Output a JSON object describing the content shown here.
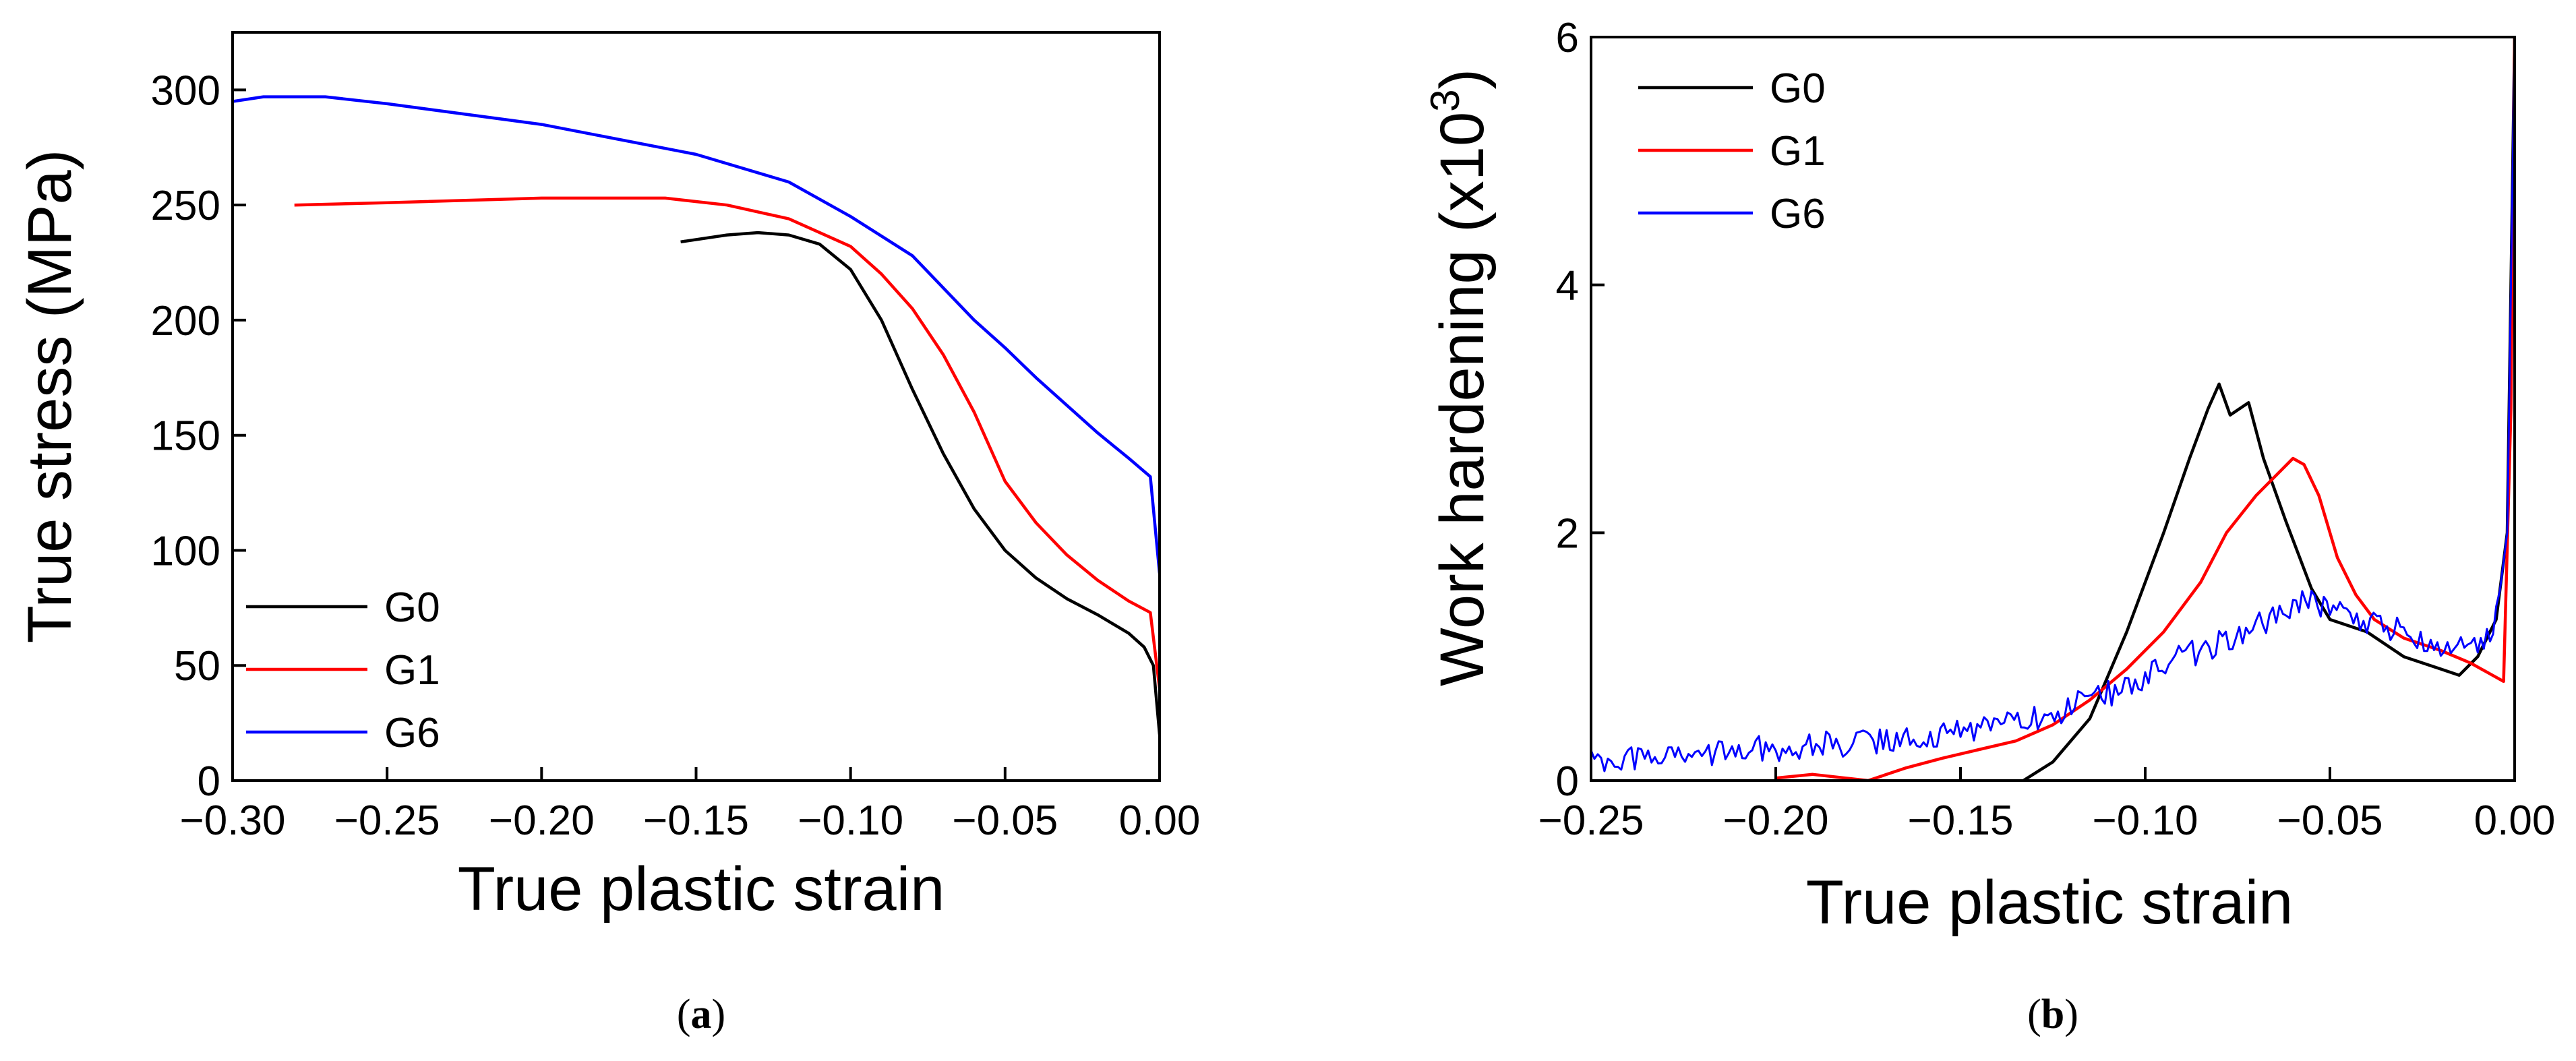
{
  "chart_data": [
    {
      "panel": "a",
      "caption_open": "(",
      "caption": "a",
      "caption_close": ")",
      "type": "line",
      "title": "",
      "xlabel": "True plastic strain",
      "ylabel": "True stress (MPa)",
      "xlim": [
        -0.3,
        0.0
      ],
      "ylim": [
        0,
        325
      ],
      "xticks": [
        -0.3,
        -0.25,
        -0.2,
        -0.15,
        -0.1,
        -0.05,
        0.0
      ],
      "xtick_labels": [
        "−0.30",
        "−0.25",
        "−0.20",
        "−0.15",
        "−0.10",
        "−0.05",
        "0.00"
      ],
      "yticks": [
        0,
        50,
        100,
        150,
        200,
        250,
        300
      ],
      "ytick_labels": [
        "0",
        "50",
        "100",
        "150",
        "200",
        "250",
        "300"
      ],
      "grid": false,
      "legend_position": "bottom-left",
      "series": [
        {
          "name": "G0",
          "color": "#000000",
          "points": [
            [
              -0.155,
              234
            ],
            [
              -0.14,
              237
            ],
            [
              -0.13,
              238
            ],
            [
              -0.12,
              237
            ],
            [
              -0.11,
              233
            ],
            [
              -0.1,
              222
            ],
            [
              -0.09,
              200
            ],
            [
              -0.08,
              170
            ],
            [
              -0.07,
              142
            ],
            [
              -0.06,
              118
            ],
            [
              -0.05,
              100
            ],
            [
              -0.04,
              88
            ],
            [
              -0.03,
              79
            ],
            [
              -0.02,
              72
            ],
            [
              -0.01,
              64
            ],
            [
              -0.005,
              58
            ],
            [
              -0.002,
              50
            ],
            [
              0.0,
              20
            ]
          ]
        },
        {
          "name": "G1",
          "color": "#ff0000",
          "points": [
            [
              -0.28,
              250
            ],
            [
              -0.25,
              251
            ],
            [
              -0.2,
              253
            ],
            [
              -0.18,
              253
            ],
            [
              -0.16,
              253
            ],
            [
              -0.14,
              250
            ],
            [
              -0.12,
              244
            ],
            [
              -0.1,
              232
            ],
            [
              -0.09,
              220
            ],
            [
              -0.08,
              205
            ],
            [
              -0.07,
              185
            ],
            [
              -0.06,
              160
            ],
            [
              -0.05,
              130
            ],
            [
              -0.04,
              112
            ],
            [
              -0.03,
              98
            ],
            [
              -0.02,
              87
            ],
            [
              -0.01,
              78
            ],
            [
              -0.003,
              73
            ],
            [
              0.0,
              40
            ]
          ]
        },
        {
          "name": "G6",
          "color": "#0000ff",
          "points": [
            [
              -0.3,
              295
            ],
            [
              -0.29,
              297
            ],
            [
              -0.27,
              297
            ],
            [
              -0.25,
              294
            ],
            [
              -0.2,
              285
            ],
            [
              -0.15,
              272
            ],
            [
              -0.12,
              260
            ],
            [
              -0.1,
              245
            ],
            [
              -0.08,
              228
            ],
            [
              -0.06,
              200
            ],
            [
              -0.05,
              188
            ],
            [
              -0.04,
              175
            ],
            [
              -0.03,
              163
            ],
            [
              -0.02,
              151
            ],
            [
              -0.01,
              140
            ],
            [
              -0.003,
              132
            ],
            [
              0.0,
              90
            ]
          ]
        }
      ]
    },
    {
      "panel": "b",
      "caption_open": "(",
      "caption": "b",
      "caption_close": ")",
      "type": "line",
      "title": "",
      "xlabel": "True plastic strain",
      "ylabel_main": "Work hardening (x10",
      "ylabel_sup": "3",
      "ylabel_close": ")",
      "xlim": [
        -0.25,
        0.0
      ],
      "ylim": [
        0,
        6
      ],
      "xticks": [
        -0.25,
        -0.2,
        -0.15,
        -0.1,
        -0.05,
        0.0
      ],
      "xtick_labels": [
        "−0.25",
        "−0.20",
        "−0.15",
        "−0.10",
        "−0.05",
        "0.00"
      ],
      "yticks": [
        0,
        2,
        4,
        6
      ],
      "ytick_labels": [
        "0",
        "2",
        "4",
        "6"
      ],
      "grid": false,
      "legend_position": "top-left",
      "series": [
        {
          "name": "G0",
          "color": "#000000",
          "points": [
            [
              -0.133,
              0.0
            ],
            [
              -0.125,
              0.15
            ],
            [
              -0.115,
              0.5
            ],
            [
              -0.105,
              1.2
            ],
            [
              -0.095,
              2.0
            ],
            [
              -0.088,
              2.6
            ],
            [
              -0.083,
              3.0
            ],
            [
              -0.08,
              3.2
            ],
            [
              -0.077,
              2.95
            ],
            [
              -0.072,
              3.05
            ],
            [
              -0.068,
              2.6
            ],
            [
              -0.062,
              2.1
            ],
            [
              -0.055,
              1.55
            ],
            [
              -0.05,
              1.3
            ],
            [
              -0.04,
              1.2
            ],
            [
              -0.03,
              1.0
            ],
            [
              -0.02,
              0.9
            ],
            [
              -0.015,
              0.85
            ],
            [
              -0.01,
              1.0
            ],
            [
              -0.005,
              1.3
            ],
            [
              -0.002,
              2.0
            ],
            [
              -0.001,
              4.0
            ],
            [
              0.0,
              6.0
            ]
          ]
        },
        {
          "name": "G1",
          "color": "#ff0000",
          "points": [
            [
              -0.2,
              0.02
            ],
            [
              -0.19,
              0.05
            ],
            [
              -0.175,
              0.0
            ],
            [
              -0.165,
              0.1
            ],
            [
              -0.155,
              0.18
            ],
            [
              -0.145,
              0.25
            ],
            [
              -0.135,
              0.32
            ],
            [
              -0.125,
              0.45
            ],
            [
              -0.115,
              0.65
            ],
            [
              -0.105,
              0.9
            ],
            [
              -0.095,
              1.2
            ],
            [
              -0.085,
              1.6
            ],
            [
              -0.078,
              2.0
            ],
            [
              -0.07,
              2.3
            ],
            [
              -0.065,
              2.45
            ],
            [
              -0.06,
              2.6
            ],
            [
              -0.057,
              2.55
            ],
            [
              -0.053,
              2.3
            ],
            [
              -0.048,
              1.8
            ],
            [
              -0.043,
              1.5
            ],
            [
              -0.038,
              1.3
            ],
            [
              -0.03,
              1.15
            ],
            [
              -0.02,
              1.05
            ],
            [
              -0.012,
              0.95
            ],
            [
              -0.006,
              0.85
            ],
            [
              -0.003,
              0.8
            ],
            [
              -0.001,
              3.0
            ],
            [
              0.0,
              6.0
            ]
          ]
        },
        {
          "name": "G6",
          "color": "#0000ff",
          "noisy": true,
          "points": [
            [
              -0.25,
              0.18
            ],
            [
              -0.23,
              0.2
            ],
            [
              -0.21,
              0.24
            ],
            [
              -0.19,
              0.28
            ],
            [
              -0.17,
              0.32
            ],
            [
              -0.15,
              0.4
            ],
            [
              -0.13,
              0.5
            ],
            [
              -0.12,
              0.6
            ],
            [
              -0.11,
              0.7
            ],
            [
              -0.1,
              0.85
            ],
            [
              -0.09,
              1.0
            ],
            [
              -0.08,
              1.1
            ],
            [
              -0.07,
              1.25
            ],
            [
              -0.06,
              1.4
            ],
            [
              -0.055,
              1.45
            ],
            [
              -0.05,
              1.4
            ],
            [
              -0.04,
              1.3
            ],
            [
              -0.03,
              1.2
            ],
            [
              -0.02,
              1.1
            ],
            [
              -0.01,
              1.1
            ],
            [
              -0.005,
              1.3
            ],
            [
              -0.002,
              2.0
            ],
            [
              -0.001,
              4.0
            ],
            [
              0.0,
              6.0
            ]
          ]
        }
      ]
    }
  ]
}
